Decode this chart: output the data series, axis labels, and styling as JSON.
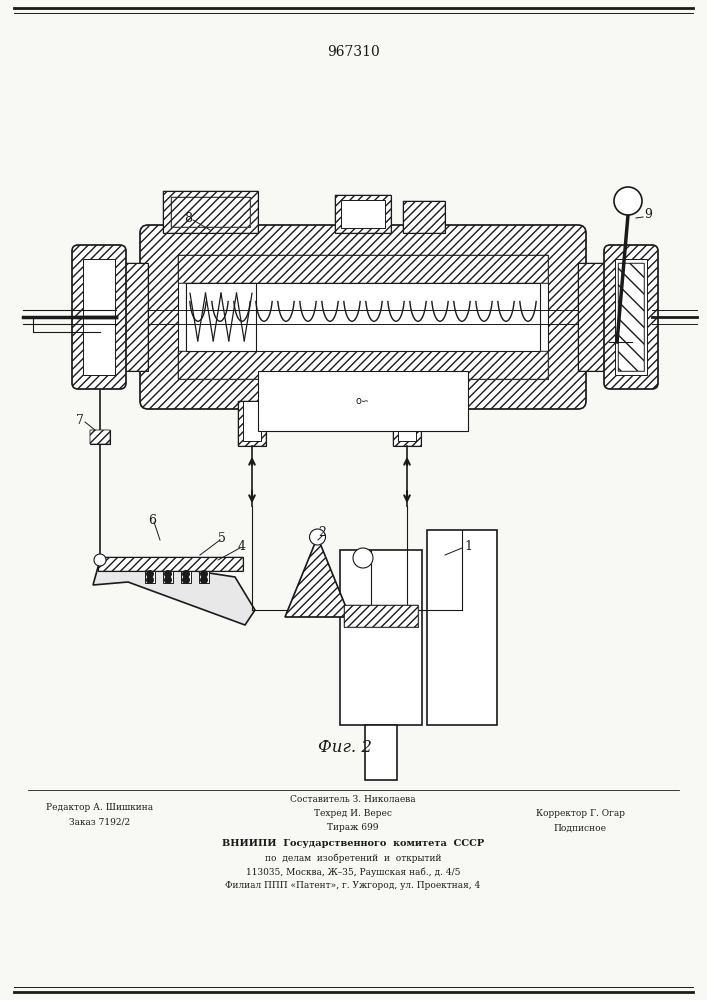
{
  "patent_number": "967310",
  "fig_label": "Фиг. 2",
  "background_color": "#f8f8f5",
  "line_color": "#1a1a1a",
  "footer_col1_line1": "Редактор А. Шишкина",
  "footer_col1_line2": "Заказ 7192/2",
  "footer_col2_line1": "Составитель З. Николаева",
  "footer_col2_line2": "Техред И. Верес",
  "footer_col2_line3": "Тираж 699",
  "footer_col3_line1": "",
  "footer_col3_line2": "Корректор Г. Огар",
  "footer_col3_line3": "Подписное",
  "footer_vniiipi": "ВНИИПИ  Государственного  комитета  СССР",
  "footer_line2": "по  делам  изобретений  и  открытий",
  "footer_line3": "113035, Москва, Ж–35, Раушская наб., д. 4/5",
  "footer_line4": "Филиал ППП «Патент», г. Ужгород, ул. Проектная, 4"
}
